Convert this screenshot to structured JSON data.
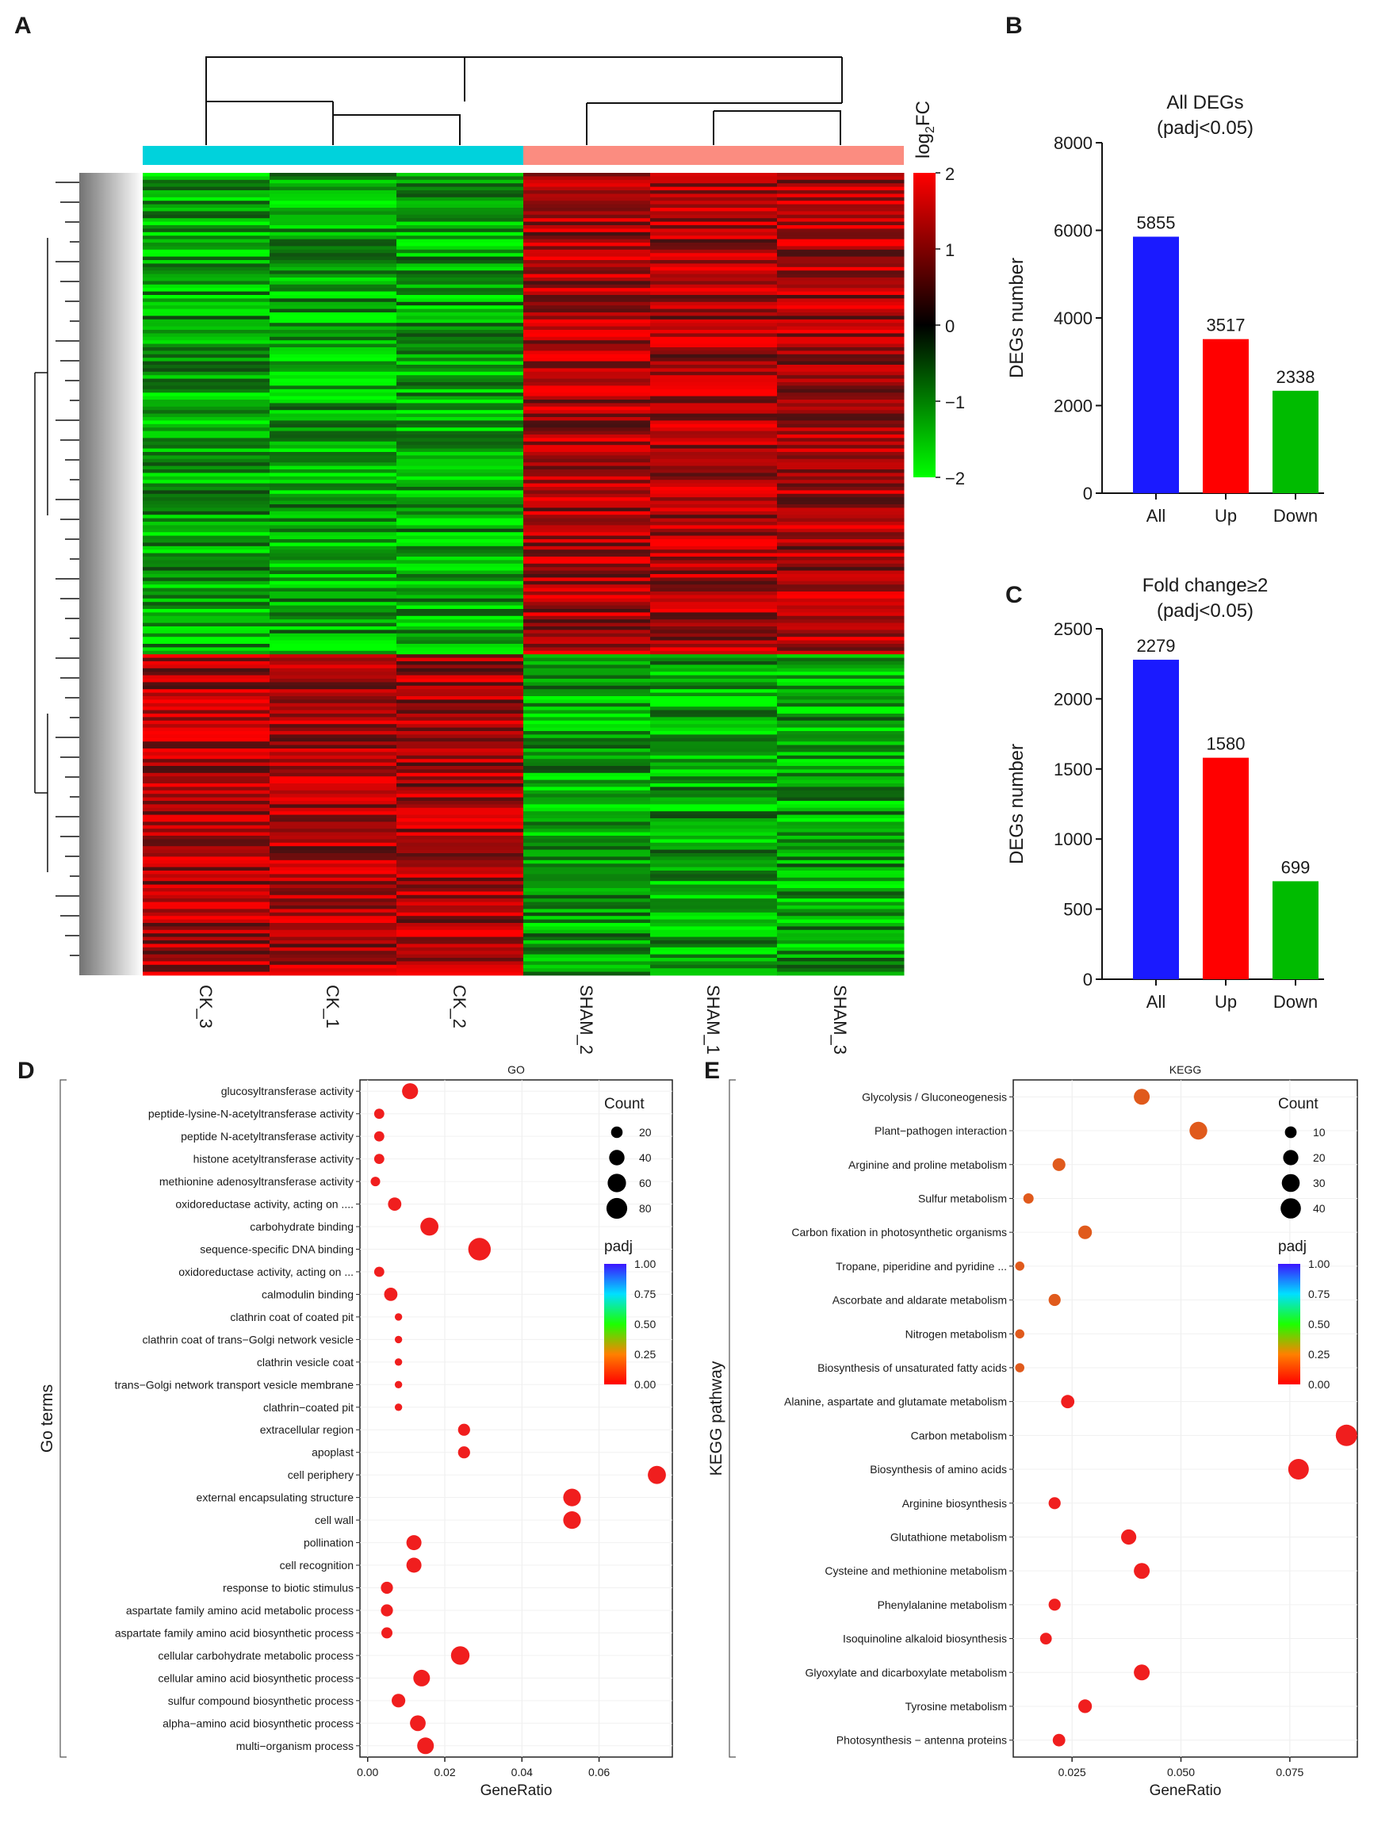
{
  "panels": {
    "A": "A",
    "B": "B",
    "C": "C",
    "D": "D",
    "E": "E"
  },
  "colors": {
    "blue": "#1a1aff",
    "red": "#ff0000",
    "green": "#00bb00",
    "ck": "#00d2dc",
    "sham": "#fb8c80"
  },
  "chart_data": [
    {
      "id": "A",
      "type": "heatmap",
      "samples": [
        "CK_3",
        "CK_1",
        "CK_2",
        "SHAM_2",
        "SHAM_1",
        "SHAM_3"
      ],
      "colorbar_title": "log2FC",
      "colorbar_ticks": [
        "2",
        "1",
        "0",
        "−1",
        "−2"
      ],
      "scale_range": [
        -2,
        2
      ],
      "colors": {
        "low": "#00ff00",
        "mid": "#000000",
        "high": "#ff0000"
      }
    },
    {
      "id": "B",
      "type": "bar",
      "title": [
        "All DEGs",
        "(padj<0.05)"
      ],
      "categories": [
        "All",
        "Up",
        "Down"
      ],
      "values": [
        5855,
        3517,
        2338
      ],
      "value_labels": [
        "5855",
        "3517",
        "2338"
      ],
      "ylabel": "DEGs number",
      "ylim": [
        0,
        8000
      ],
      "yticks": [
        "0",
        "2000",
        "4000",
        "6000",
        "8000"
      ]
    },
    {
      "id": "C",
      "type": "bar",
      "title": [
        "Fold change≥2",
        "(padj<0.05)"
      ],
      "categories": [
        "All",
        "Up",
        "Down"
      ],
      "values": [
        2279,
        1580,
        699
      ],
      "value_labels": [
        "2279",
        "1580",
        "699"
      ],
      "ylabel": "DEGs number",
      "ylim": [
        0,
        2500
      ],
      "yticks": [
        "0",
        "500",
        "1000",
        "1500",
        "2000",
        "2500"
      ]
    },
    {
      "id": "D",
      "type": "scatter",
      "title": "GO",
      "xlabel": "GeneRatio",
      "ylabel": "Go terms",
      "xlim": [
        -0.002,
        0.079
      ],
      "xticks": [
        "0.00",
        "0.02",
        "0.04",
        "0.06"
      ],
      "size_legend_title": "Count",
      "size_legend": [
        "20",
        "40",
        "60",
        "80"
      ],
      "color_legend_title": "padj",
      "color_legend": [
        "1.00",
        "0.75",
        "0.50",
        "0.25",
        "0.00"
      ],
      "points": [
        {
          "term": "glucosyltransferase activity",
          "x": 0.011,
          "count": 44
        },
        {
          "term": "peptide-lysine-N-acetyltransferase activity",
          "x": 0.003,
          "count": 14
        },
        {
          "term": "peptide N-acetyltransferase activity",
          "x": 0.003,
          "count": 14
        },
        {
          "term": "histone acetyltransferase activity",
          "x": 0.003,
          "count": 14
        },
        {
          "term": "methionine adenosyltransferase activity",
          "x": 0.002,
          "count": 12
        },
        {
          "term": "oxidoreductase activity, acting on ....",
          "x": 0.007,
          "count": 28
        },
        {
          "term": "carbohydrate binding",
          "x": 0.016,
          "count": 58
        },
        {
          "term": "sequence-specific DNA binding",
          "x": 0.029,
          "count": 95
        },
        {
          "term": "oxidoreductase activity, acting on ...",
          "x": 0.003,
          "count": 14
        },
        {
          "term": "calmodulin binding",
          "x": 0.006,
          "count": 28
        },
        {
          "term": "clathrin coat of coated pit",
          "x": 0.008,
          "count": 6
        },
        {
          "term": "clathrin coat of trans−Golgi network vesicle",
          "x": 0.008,
          "count": 6
        },
        {
          "term": "clathrin vesicle coat",
          "x": 0.008,
          "count": 6
        },
        {
          "term": "trans−Golgi network transport vesicle membrane",
          "x": 0.008,
          "count": 6
        },
        {
          "term": "clathrin−coated pit",
          "x": 0.008,
          "count": 6
        },
        {
          "term": "extracellular region",
          "x": 0.025,
          "count": 22
        },
        {
          "term": "apoplast",
          "x": 0.025,
          "count": 22
        },
        {
          "term": "cell periphery",
          "x": 0.075,
          "count": 58
        },
        {
          "term": "external encapsulating structure",
          "x": 0.053,
          "count": 54
        },
        {
          "term": "cell wall",
          "x": 0.053,
          "count": 54
        },
        {
          "term": "pollination",
          "x": 0.012,
          "count": 38
        },
        {
          "term": "cell recognition",
          "x": 0.012,
          "count": 38
        },
        {
          "term": "response to biotic stimulus",
          "x": 0.005,
          "count": 22
        },
        {
          "term": "aspartate family amino acid metabolic process",
          "x": 0.005,
          "count": 22
        },
        {
          "term": "aspartate family amino acid biosynthetic process",
          "x": 0.005,
          "count": 18
        },
        {
          "term": "cellular carbohydrate metabolic process",
          "x": 0.024,
          "count": 62
        },
        {
          "term": "cellular amino acid biosynthetic process",
          "x": 0.014,
          "count": 48
        },
        {
          "term": "sulfur compound biosynthetic process",
          "x": 0.008,
          "count": 30
        },
        {
          "term": "alpha−amino acid biosynthetic process",
          "x": 0.013,
          "count": 42
        },
        {
          "term": "multi−organism process",
          "x": 0.015,
          "count": 48
        }
      ]
    },
    {
      "id": "E",
      "type": "scatter",
      "title": "KEGG",
      "xlabel": "GeneRatio",
      "ylabel": "KEGG pathway",
      "xlim": [
        0.0115,
        0.0905
      ],
      "xticks": [
        "0.025",
        "0.050",
        "0.075"
      ],
      "size_legend_title": "Count",
      "size_legend": [
        "10",
        "20",
        "30",
        "40"
      ],
      "color_legend_title": "padj",
      "color_legend": [
        "1.00",
        "0.75",
        "0.50",
        "0.25",
        "0.00"
      ],
      "points": [
        {
          "term": "Glycolysis / Gluconeogenesis",
          "x": 0.041,
          "count": 22
        },
        {
          "term": "Plant−pathogen interaction",
          "x": 0.054,
          "count": 29
        },
        {
          "term": "Arginine and proline metabolism",
          "x": 0.022,
          "count": 13
        },
        {
          "term": "Sulfur metabolism",
          "x": 0.015,
          "count": 7
        },
        {
          "term": "Carbon fixation in photosynthetic organisms",
          "x": 0.028,
          "count": 15
        },
        {
          "term": "Tropane, piperidine and pyridine ...",
          "x": 0.013,
          "count": 5
        },
        {
          "term": "Ascorbate and aldarate metabolism",
          "x": 0.021,
          "count": 11
        },
        {
          "term": "Nitrogen metabolism",
          "x": 0.013,
          "count": 5
        },
        {
          "term": "Biosynthesis of unsaturated fatty acids",
          "x": 0.013,
          "count": 5
        },
        {
          "term": "Alanine, aspartate and glutamate metabolism",
          "x": 0.024,
          "count": 14
        },
        {
          "term": "Carbon metabolism",
          "x": 0.088,
          "count": 46
        },
        {
          "term": "Biosynthesis of amino acids",
          "x": 0.077,
          "count": 42
        },
        {
          "term": "Arginine biosynthesis",
          "x": 0.021,
          "count": 11
        },
        {
          "term": "Glutathione metabolism",
          "x": 0.038,
          "count": 20
        },
        {
          "term": "Cysteine and methionine metabolism",
          "x": 0.041,
          "count": 22
        },
        {
          "term": "Phenylalanine metabolism",
          "x": 0.021,
          "count": 11
        },
        {
          "term": "Isoquinoline alkaloid biosynthesis",
          "x": 0.019,
          "count": 10
        },
        {
          "term": "Glyoxylate and dicarboxylate metabolism",
          "x": 0.041,
          "count": 22
        },
        {
          "term": "Tyrosine metabolism",
          "x": 0.028,
          "count": 15
        },
        {
          "term": "Photosynthesis − antenna proteins",
          "x": 0.022,
          "count": 12
        }
      ]
    }
  ]
}
